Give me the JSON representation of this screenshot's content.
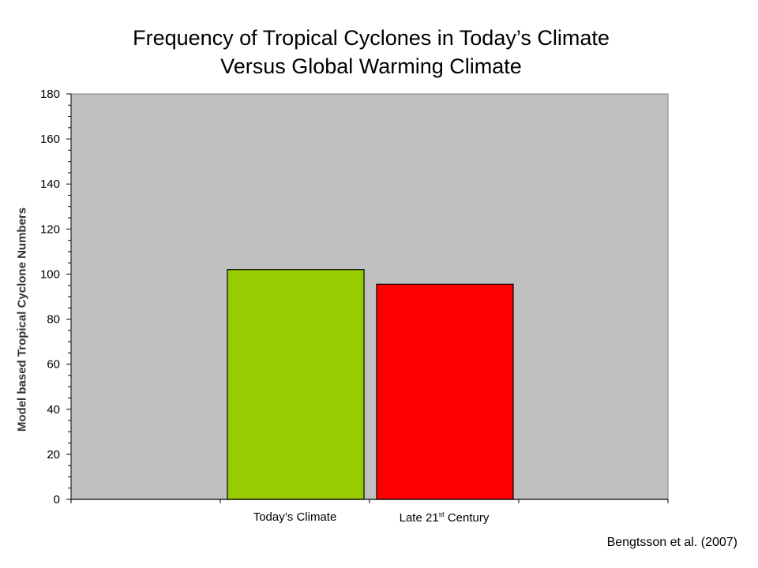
{
  "chart_data": {
    "type": "bar",
    "title": [
      "Frequency of Tropical Cyclones in Today’s Climate",
      "Versus Global Warming Climate"
    ],
    "ylabel": "Model based Tropical Cyclone Numbers",
    "xlabel": "",
    "categories": [
      "Today’s Climate",
      "Late 21st Century"
    ],
    "category_parts": [
      {
        "text": "Today’s Climate",
        "sup": "",
        "after": ""
      },
      {
        "text": "Late 21",
        "sup": "st",
        "after": " Century"
      }
    ],
    "values": [
      102,
      95.5
    ],
    "colors": [
      "#99cc00",
      "#ff0000"
    ],
    "ylim": [
      0,
      180
    ],
    "yticks": [
      0,
      20,
      40,
      60,
      80,
      100,
      120,
      140,
      160,
      180
    ],
    "grid": false,
    "plot_background": "#c0c0c0",
    "legend": "none"
  },
  "source": "Bengtsson et al. (2007)"
}
